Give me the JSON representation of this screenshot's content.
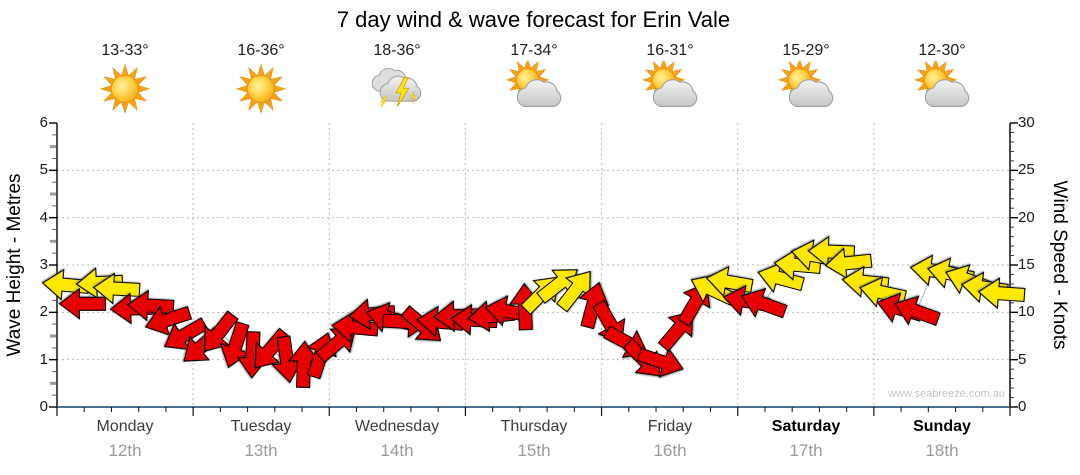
{
  "title": "7 day wind & wave forecast for Erin Vale",
  "watermark": "www.seabreeze.com.au",
  "days": [
    {
      "name": "Monday",
      "date": "12th",
      "temps": "13-33°",
      "icon": "sunny",
      "weekend": false
    },
    {
      "name": "Tuesday",
      "date": "13th",
      "temps": "16-36°",
      "icon": "sunny",
      "weekend": false
    },
    {
      "name": "Wednesday",
      "date": "14th",
      "temps": "18-36°",
      "icon": "storm",
      "weekend": false
    },
    {
      "name": "Thursday",
      "date": "15th",
      "temps": "17-34°",
      "icon": "partly-cloudy",
      "weekend": false
    },
    {
      "name": "Friday",
      "date": "16th",
      "temps": "16-31°",
      "icon": "partly-cloudy",
      "weekend": false
    },
    {
      "name": "Saturday",
      "date": "17th",
      "temps": "15-29°",
      "icon": "partly-cloudy",
      "weekend": true
    },
    {
      "name": "Sunday",
      "date": "18th",
      "temps": "12-30°",
      "icon": "partly-cloudy",
      "weekend": true
    }
  ],
  "axes": {
    "left_title": "Wave Height - Metres",
    "right_title": "Wind Speed - Knots",
    "left_ticks": [
      0,
      1,
      2,
      3,
      4,
      5,
      6
    ],
    "right_ticks": [
      0,
      5,
      10,
      15,
      20,
      25,
      30
    ]
  },
  "colors": {
    "arrow_yellow": "#ffe800",
    "arrow_red": "#e60000",
    "bottom_axis": "#4a7096",
    "gridline": "#b8b8b8",
    "trend_line": "#b0b0b0"
  },
  "chart_data": {
    "type": "wind-arrow-timeseries",
    "title": "7 day wind & wave forecast for Erin Vale",
    "categories": [
      "Monday 12th",
      "Tuesday 13th",
      "Wednesday 14th",
      "Thursday 15th",
      "Friday 16th",
      "Saturday 17th",
      "Sunday 18th"
    ],
    "ylabel_left": "Wave Height - Metres",
    "ylabel_right": "Wind Speed - Knots",
    "ylim_left": [
      0,
      6
    ],
    "ylim_right": [
      0,
      30
    ],
    "grid": "dotted, at every 5 knots and at day boundaries",
    "legend": "none",
    "points_per_day": 8,
    "arrow_format": "[wind_knots, direction_deg_cw_from_east, Y=yellow|R=red]",
    "arrows": [
      [
        12.9,
        185,
        "Y"
      ],
      [
        10.9,
        180,
        "R"
      ],
      [
        13.1,
        177,
        "Y"
      ],
      [
        12.5,
        183,
        "Y"
      ],
      [
        10.4,
        178,
        "R"
      ],
      [
        10.7,
        183,
        "R"
      ],
      [
        9.2,
        162,
        "R"
      ],
      [
        7.6,
        150,
        "R"
      ],
      [
        6.4,
        140,
        "R"
      ],
      [
        7.8,
        128,
        "R"
      ],
      [
        6.5,
        108,
        "R"
      ],
      [
        5.5,
        92,
        "R"
      ],
      [
        6.0,
        130,
        "R"
      ],
      [
        5.0,
        82,
        "R"
      ],
      [
        4.5,
        272,
        "R"
      ],
      [
        5.5,
        288,
        "R"
      ],
      [
        6.8,
        320,
        "R"
      ],
      [
        8.4,
        185,
        "R"
      ],
      [
        9.8,
        175,
        "R"
      ],
      [
        9.4,
        195,
        "R"
      ],
      [
        9.0,
        3,
        "R"
      ],
      [
        8.6,
        40,
        "R"
      ],
      [
        9.0,
        185,
        "R"
      ],
      [
        9.6,
        178,
        "R"
      ],
      [
        9.2,
        183,
        "R"
      ],
      [
        9.6,
        174,
        "R"
      ],
      [
        10.1,
        190,
        "R"
      ],
      [
        10.6,
        268,
        "R"
      ],
      [
        12.0,
        315,
        "Y"
      ],
      [
        13.0,
        322,
        "Y"
      ],
      [
        12.4,
        308,
        "Y"
      ],
      [
        10.8,
        285,
        "R"
      ],
      [
        8.8,
        60,
        "R"
      ],
      [
        6.8,
        28,
        "R"
      ],
      [
        5.0,
        45,
        "R"
      ],
      [
        4.8,
        18,
        "R"
      ],
      [
        8.2,
        310,
        "R"
      ],
      [
        11.0,
        300,
        "R"
      ],
      [
        12.4,
        205,
        "Y"
      ],
      [
        13.2,
        190,
        "Y"
      ],
      [
        11.2,
        190,
        "R"
      ],
      [
        10.9,
        200,
        "R"
      ],
      [
        13.6,
        195,
        "Y"
      ],
      [
        15.0,
        185,
        "Y"
      ],
      [
        16.0,
        190,
        "Y"
      ],
      [
        16.4,
        182,
        "Y"
      ],
      [
        15.2,
        174,
        "Y"
      ],
      [
        13.2,
        186,
        "Y"
      ],
      [
        12.1,
        192,
        "Y"
      ],
      [
        10.4,
        196,
        "R"
      ],
      [
        10.1,
        200,
        "R"
      ],
      [
        14.4,
        188,
        "Y"
      ],
      [
        14.1,
        192,
        "Y"
      ],
      [
        13.4,
        200,
        "Y"
      ],
      [
        12.6,
        188,
        "Y"
      ],
      [
        12.0,
        184,
        "Y"
      ]
    ]
  }
}
